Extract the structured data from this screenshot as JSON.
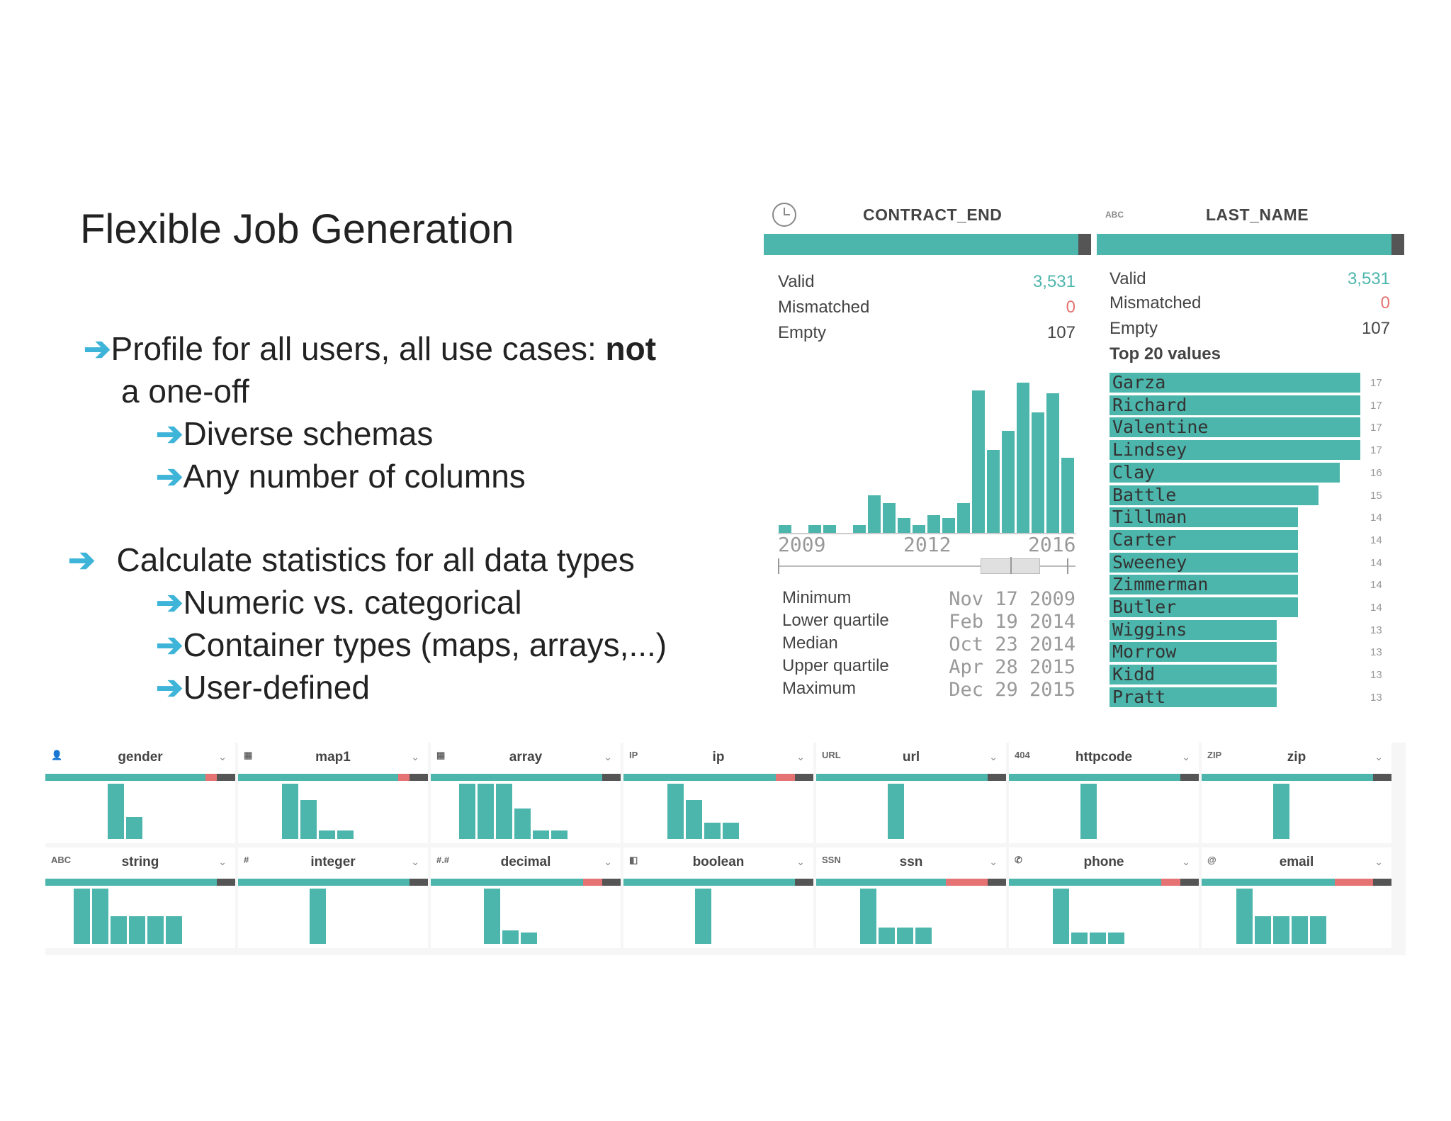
{
  "slide": {
    "title": "Flexible Job Generation",
    "bullets": [
      {
        "arrow": "➔",
        "text": "Profile for all users, all use cases: ",
        "bold": "not"
      },
      {
        "text": "a one-off"
      },
      {
        "arrow": "➔",
        "text": "Diverse schemas"
      },
      {
        "arrow": "➔",
        "text": "Any number of columns"
      },
      {
        "arrow": "➔",
        "text": "Calculate statistics for all data types"
      },
      {
        "arrow": "➔",
        "text": "Numeric vs. categorical"
      },
      {
        "arrow": "➔",
        "text": "Container types (maps, arrays,...)"
      },
      {
        "arrow": "➔",
        "text": "User-defined"
      }
    ]
  },
  "contract_end": {
    "icon": "clock-icon",
    "title": "CONTRACT_END",
    "valid_label": "Valid",
    "valid_value": "3,531",
    "mismatched_label": "Mismatched",
    "mismatched_value": "0",
    "empty_label": "Empty",
    "empty_value": "107",
    "histogram": [
      0.05,
      0,
      0.05,
      0.05,
      0,
      0.05,
      0.25,
      0.2,
      0.1,
      0.05,
      0.12,
      0.1,
      0.2,
      0.95,
      0.55,
      0.68,
      1.0,
      0.8,
      0.93,
      0.5
    ],
    "years": [
      "2009",
      "2012",
      "2016"
    ],
    "minimum_label": "Minimum",
    "minimum_value": "Nov 17 2009",
    "lower_label": "Lower quartile",
    "lower_value": "Feb 19 2014",
    "median_label": "Median",
    "median_value": "Oct 23 2014",
    "upper_label": "Upper quartile",
    "upper_value": "Apr 28 2015",
    "maximum_label": "Maximum",
    "maximum_value": "Dec 29 2015"
  },
  "last_name": {
    "type_tag": "ABC",
    "title": "LAST_NAME",
    "valid_label": "Valid",
    "valid_value": "3,531",
    "mismatched_label": "Mismatched",
    "mismatched_value": "0",
    "empty_label": "Empty",
    "empty_value": "107",
    "top_label": "Top 20 values",
    "top_values": [
      {
        "name": "Garza",
        "count": "17"
      },
      {
        "name": "Richard",
        "count": "17"
      },
      {
        "name": "Valentine",
        "count": "17"
      },
      {
        "name": "Lindsey",
        "count": "17"
      },
      {
        "name": "Clay",
        "count": "16"
      },
      {
        "name": "Battle",
        "count": "15"
      },
      {
        "name": "Tillman",
        "count": "14"
      },
      {
        "name": "Carter",
        "count": "14"
      },
      {
        "name": "Sweeney",
        "count": "14"
      },
      {
        "name": "Zimmerman",
        "count": "14"
      },
      {
        "name": "Butler",
        "count": "14"
      },
      {
        "name": "Wiggins",
        "count": "13"
      },
      {
        "name": "Morrow",
        "count": "13"
      },
      {
        "name": "Kidd",
        "count": "13"
      },
      {
        "name": "Pratt",
        "count": "13"
      }
    ]
  },
  "columns_row1": [
    {
      "icon": "person-icon",
      "tag": "",
      "name": "gender",
      "mismatch": 0.06,
      "bars": [
        1.0,
        0.4
      ]
    },
    {
      "icon": "map-icon",
      "tag": "",
      "name": "map1",
      "mismatch": 0.06,
      "bars": [
        1.0,
        0.7,
        0.15,
        0.15
      ]
    },
    {
      "icon": "grid-icon",
      "tag": "",
      "name": "array",
      "mismatch": 0.0,
      "bars": [
        1.0,
        1.0,
        1.0,
        0.55,
        0.15,
        0.15
      ]
    },
    {
      "icon": "",
      "tag": "IP",
      "name": "ip",
      "mismatch": 0.1,
      "bars": [
        1.0,
        0.7,
        0.3,
        0.3
      ]
    },
    {
      "icon": "",
      "tag": "URL",
      "name": "url",
      "mismatch": 0.0,
      "bars": [
        1.0
      ]
    },
    {
      "icon": "",
      "tag": "404",
      "name": "httpcode",
      "mismatch": 0.0,
      "bars": [
        1.0
      ]
    },
    {
      "icon": "",
      "tag": "ZIP",
      "name": "zip",
      "mismatch": 0.0,
      "bars": [
        1.0
      ]
    }
  ],
  "columns_row2": [
    {
      "icon": "",
      "tag": "ABC",
      "name": "string",
      "mismatch": 0.0,
      "bars": [
        1.0,
        1.0,
        0.5,
        0.5,
        0.5,
        0.5
      ]
    },
    {
      "icon": "",
      "tag": "#",
      "name": "integer",
      "mismatch": 0.0,
      "bars": [
        1.0
      ]
    },
    {
      "icon": "",
      "tag": "#.#",
      "name": "decimal",
      "mismatch": 0.1,
      "bars": [
        1.0,
        0.25,
        0.2
      ]
    },
    {
      "icon": "toggle-icon",
      "tag": "",
      "name": "boolean",
      "mismatch": 0.0,
      "bars": [
        1.0
      ]
    },
    {
      "icon": "",
      "tag": "SSN",
      "name": "ssn",
      "mismatch": 0.22,
      "bars": [
        1.0,
        0.3,
        0.3,
        0.3
      ]
    },
    {
      "icon": "phone-icon",
      "tag": "",
      "name": "phone",
      "mismatch": 0.1,
      "bars": [
        1.0,
        0.2,
        0.2,
        0.2
      ]
    },
    {
      "icon": "at-icon",
      "tag": "@",
      "name": "email",
      "mismatch": 0.2,
      "bars": [
        1.0,
        0.5,
        0.5,
        0.5,
        0.5
      ]
    }
  ],
  "colors": {
    "teal": "#4db6ac",
    "red": "#e57373",
    "dark": "#555555",
    "arrow": "#3db4d8"
  }
}
